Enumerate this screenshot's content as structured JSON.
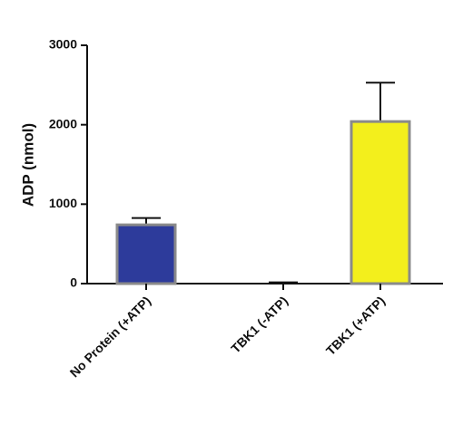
{
  "chart_data": {
    "type": "bar",
    "y_label": "ADP (nmol)",
    "categories": [
      "No Protein (+ATP)",
      "TBK1 (-ATP)",
      "TBK1 (+ATP)"
    ],
    "values": [
      740,
      0,
      2040
    ],
    "errors": [
      85,
      15,
      490
    ],
    "colors": [
      "#2d3b9b",
      "#2d3b9b",
      "#f3ef1c"
    ],
    "ylim": [
      0,
      3000
    ],
    "yticks": [
      0,
      1000,
      2000,
      3000
    ],
    "grid": false
  }
}
